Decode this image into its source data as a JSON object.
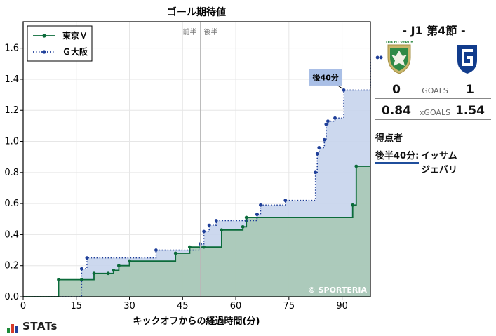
{
  "chart_data": {
    "type": "line",
    "title": "ゴール期待値",
    "xlabel": "キックオフからの経過時間(分)",
    "ylabel": "",
    "xlim": [
      0,
      98
    ],
    "ylim": [
      0,
      1.77
    ],
    "x_ticks": [
      "0",
      "15",
      "30",
      "45",
      "60",
      "75",
      "90"
    ],
    "y_ticks": [
      "0.0",
      "0.2",
      "0.4",
      "0.6",
      "0.8",
      "1.0",
      "1.2",
      "1.4",
      "1.6"
    ],
    "half_labels": {
      "first": "前半",
      "second": "後半"
    },
    "half_line_x": 50,
    "legend_position": "top-left",
    "series": [
      {
        "name": "東京Ｖ",
        "color": "#0b6b3a",
        "fill": "#a9c9b5",
        "style": "solid",
        "x": [
          10,
          16.5,
          20,
          24,
          25.5,
          27,
          30,
          43,
          47,
          51,
          56,
          62,
          63,
          93,
          94
        ],
        "y": [
          0.11,
          0.11,
          0.15,
          0.15,
          0.17,
          0.2,
          0.23,
          0.28,
          0.32,
          0.32,
          0.43,
          0.45,
          0.51,
          0.59,
          0.84
        ],
        "end_x": 105
      },
      {
        "name": "Ｇ大阪",
        "color": "#1f3f99",
        "fill": "#c7d4ec",
        "style": "dotted",
        "x": [
          16.5,
          18,
          37.5,
          50,
          51,
          52.5,
          54.5,
          63,
          66,
          67,
          74,
          82.5,
          83,
          83.5,
          85,
          85.5,
          86,
          88,
          90.5,
          100,
          101
        ],
        "y": [
          0.18,
          0.25,
          0.3,
          0.34,
          0.42,
          0.46,
          0.49,
          0.49,
          0.53,
          0.59,
          0.62,
          0.8,
          0.92,
          0.96,
          1.01,
          1.11,
          1.13,
          1.15,
          1.33,
          1.54,
          1.54
        ],
        "end_x": 105
      }
    ],
    "annotations": [
      {
        "text": "後40分",
        "x": 90.5,
        "y": 1.33
      }
    ],
    "watermark": "© SPORTERIA"
  },
  "match": {
    "title": "- J1 第4節 -",
    "home_logo_text": "TOKYO VERDY",
    "home_score": "0",
    "away_score": "1",
    "goals_label": "GOALS",
    "home_xg": "0.84",
    "away_xg": "1.54",
    "xg_label": "xGOALS",
    "scorers_title": "得点者",
    "scorers": [
      {
        "time": "後半40分:",
        "names": [
          "イッサム",
          "ジェバリ"
        ]
      }
    ]
  },
  "brand": {
    "name": "STATs"
  },
  "colors": {
    "home": "#0b6b3a",
    "away": "#1f3f99",
    "verdy_green": "#1d7a3a",
    "gamba_blue": "#123c8c"
  }
}
